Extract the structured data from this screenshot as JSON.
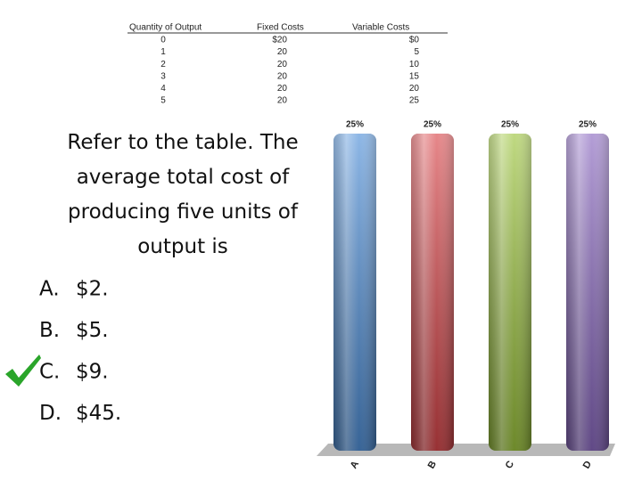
{
  "table": {
    "headers": [
      "Quantity of Output",
      "Fixed Costs",
      "Variable Costs"
    ],
    "rows": [
      [
        "0",
        "$20",
        "$0"
      ],
      [
        "1",
        "20",
        "5"
      ],
      [
        "2",
        "20",
        "10"
      ],
      [
        "3",
        "20",
        "15"
      ],
      [
        "4",
        "20",
        "20"
      ],
      [
        "5",
        "20",
        "25"
      ]
    ]
  },
  "question": {
    "text": "Refer to the table.  The average total cost of producing five units of output is",
    "options": [
      {
        "letter": "A.",
        "text": "$2."
      },
      {
        "letter": "B.",
        "text": "$5."
      },
      {
        "letter": "C.",
        "text": "$9."
      },
      {
        "letter": "D.",
        "text": "$45."
      }
    ],
    "correct_option": 2
  },
  "chart_data": {
    "type": "bar",
    "categories": [
      "A",
      "B",
      "C",
      "D"
    ],
    "values": [
      25,
      25,
      25,
      25
    ],
    "value_labels": [
      "25%",
      "25%",
      "25%",
      "25%"
    ],
    "colors": [
      "#4f8fd8",
      "#d9464a",
      "#9cc43c",
      "#8a68c0"
    ]
  }
}
